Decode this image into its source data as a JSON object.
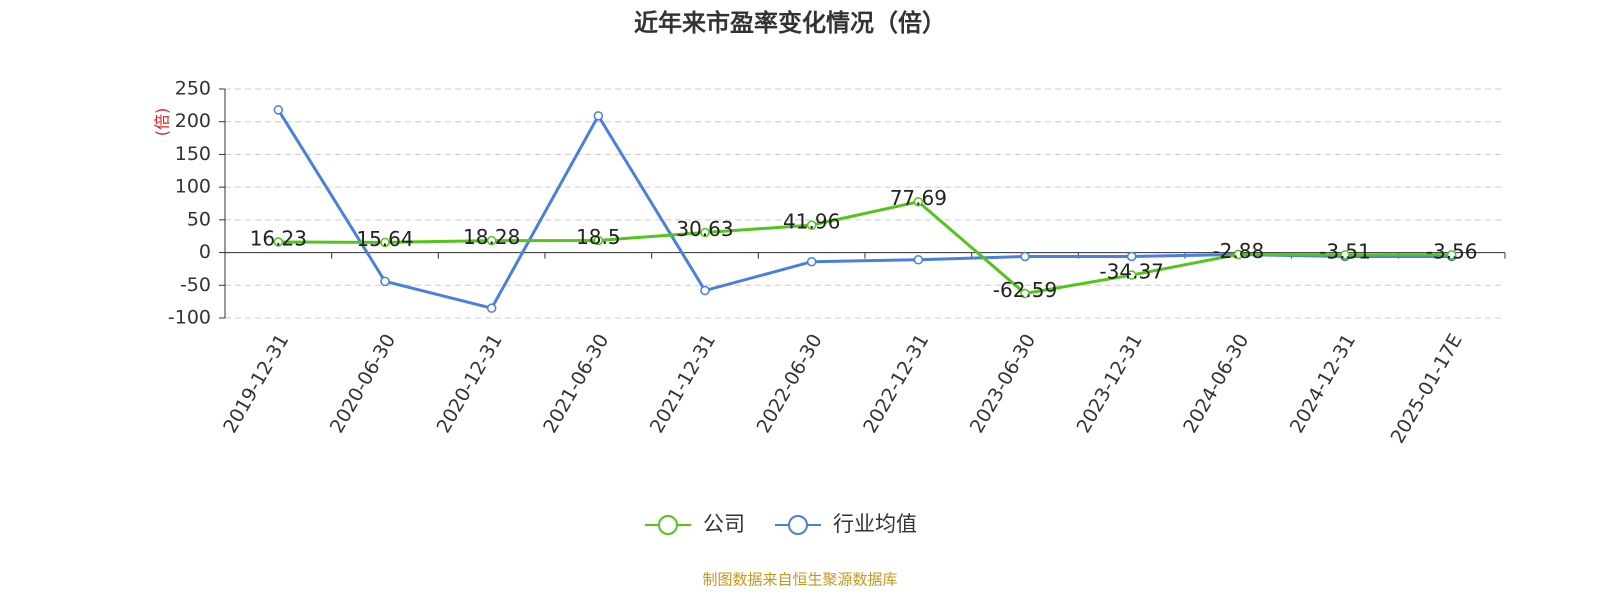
{
  "chart_data": {
    "type": "line",
    "title": "近年来市盈率变化情况（倍）",
    "y_label": "(倍)",
    "source": "制图数据来自恒生聚源数据库",
    "categories": [
      "2019-12-31",
      "2020-06-30",
      "2020-12-31",
      "2021-06-30",
      "2021-12-31",
      "2022-06-30",
      "2022-12-31",
      "2023-06-30",
      "2023-12-31",
      "2024-06-30",
      "2024-12-31",
      "2025-01-17E"
    ],
    "series": [
      {
        "name": "公司",
        "color": "#52c41a",
        "values": [
          16.23,
          15.64,
          18.28,
          18.5,
          30.63,
          41.96,
          77.69,
          -62.59,
          -34.37,
          -2.88,
          -3.51,
          -3.56
        ],
        "show_labels": true
      },
      {
        "name": "行业均值",
        "color": "#4a7fdc",
        "values": [
          218,
          -44,
          -85,
          209,
          -58,
          -14,
          -11,
          -6,
          -6,
          -3,
          -6,
          -6
        ],
        "show_labels": false
      }
    ],
    "ylim": [
      -100,
      250
    ],
    "yticks": [
      -100,
      -50,
      0,
      50,
      100,
      150,
      200,
      250
    ],
    "grid": true
  }
}
